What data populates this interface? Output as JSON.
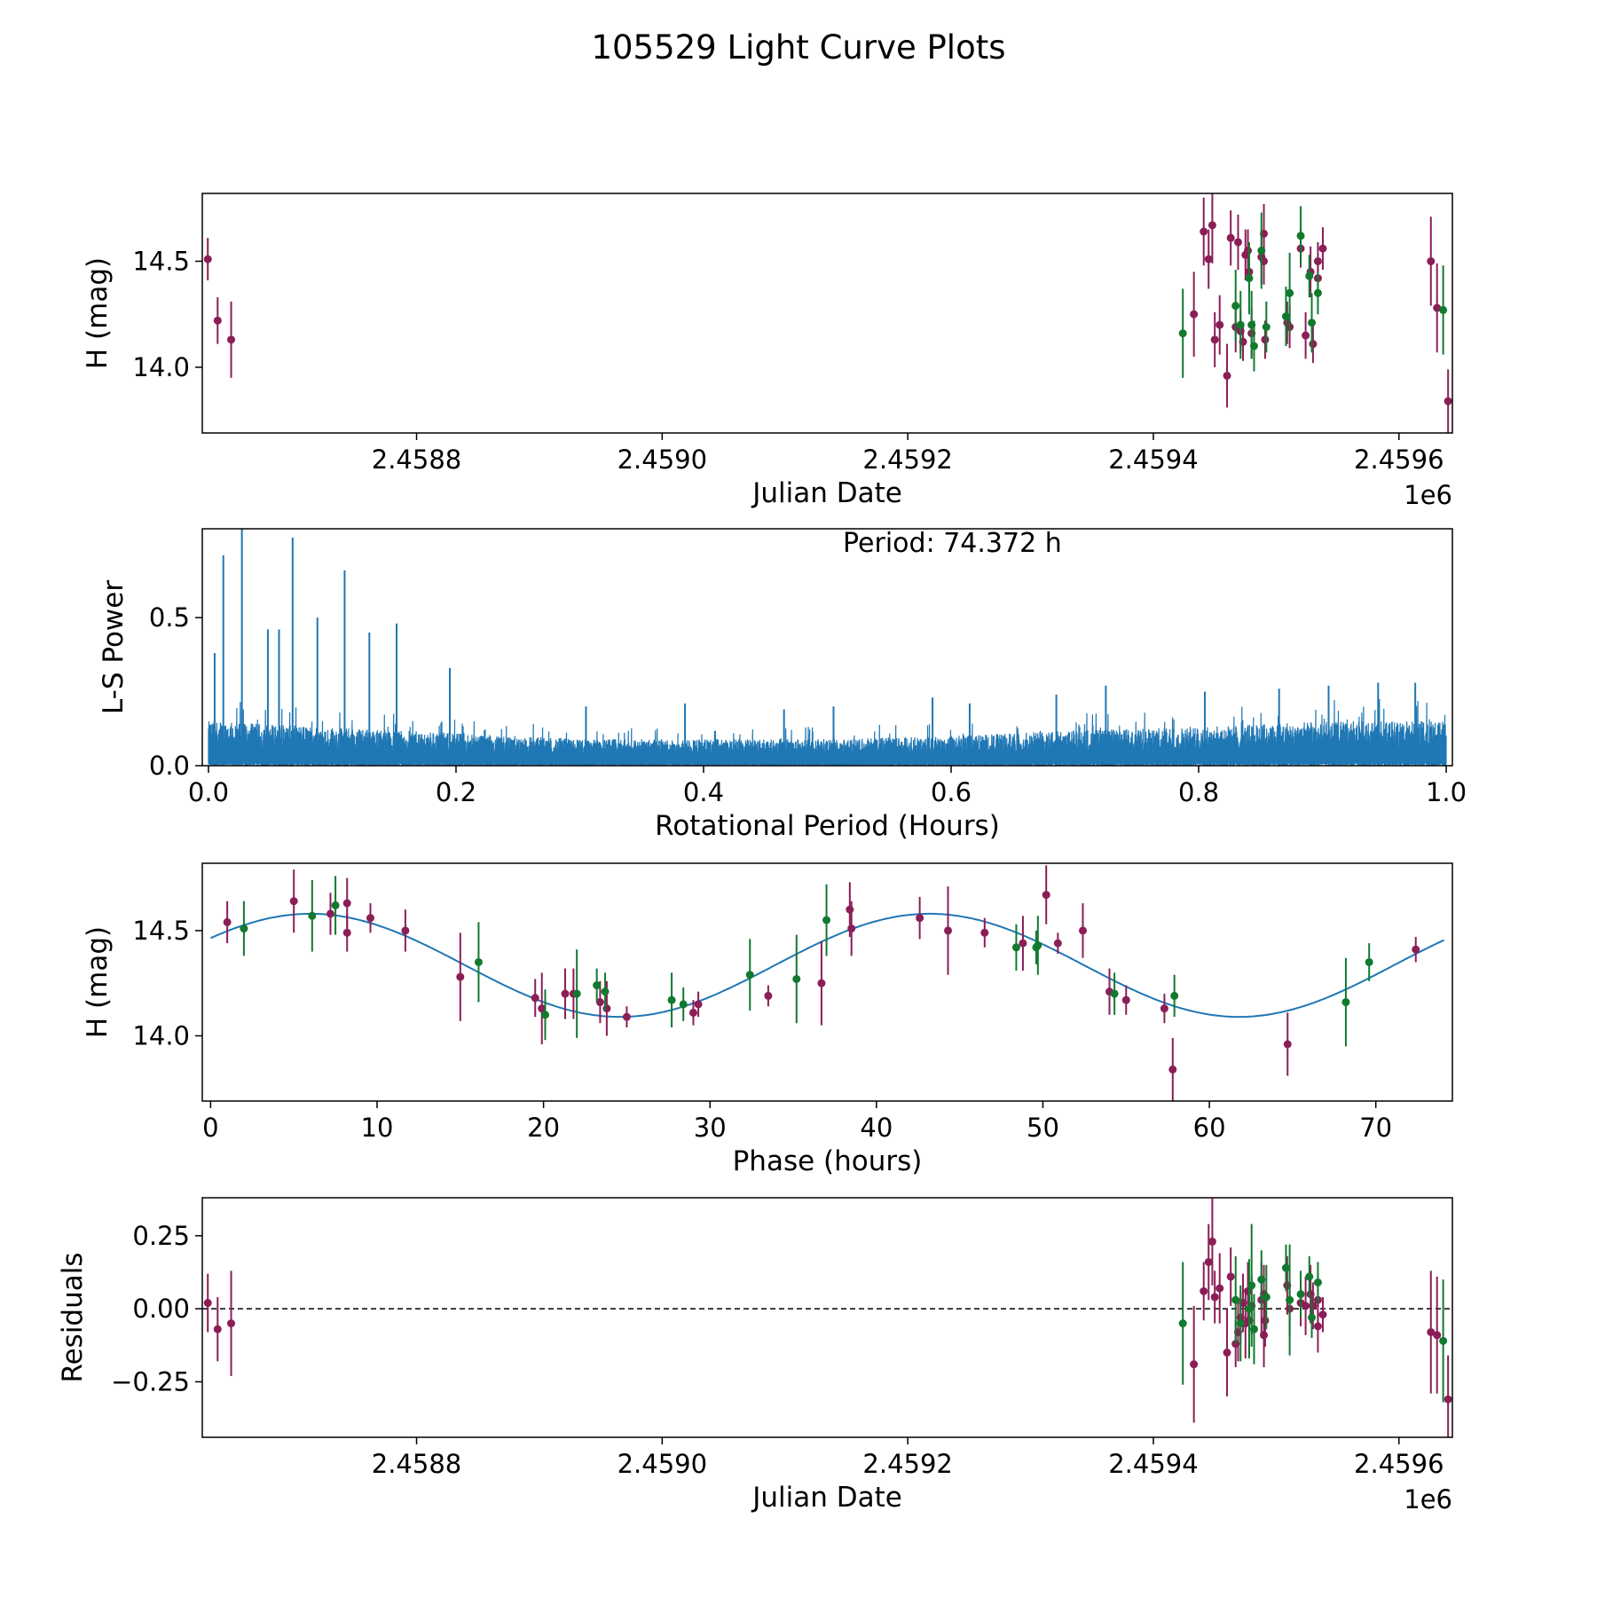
{
  "figure": {
    "title": "105529 Light Curve Plots"
  },
  "colors": {
    "filter_r": "#8B1E57",
    "filter_g": "#117A2E",
    "periodogram": "#1F77B4",
    "fit_line": "#1F77B4",
    "axes": "#000000",
    "zero_line": "#000000"
  },
  "chart_data": [
    {
      "id": "raw-light-curve",
      "type": "scatter",
      "title": "",
      "xlabel": "Julian Date",
      "ylabel": "H (mag)",
      "xlim": [
        2458625.5,
        2459643.5
      ],
      "ylim": [
        13.69,
        14.82
      ],
      "xticks": [
        2458800,
        2459000,
        2459200,
        2459400,
        2459600
      ],
      "xtick_labels": [
        "2.4588",
        "2.4590",
        "2.4592",
        "2.4594",
        "2.4596"
      ],
      "x_offset_label": "1e6",
      "yticks": [
        14.0,
        14.5
      ],
      "ytick_labels": [
        "14.0",
        "14.5"
      ],
      "series": [
        {
          "name": "r",
          "color_key": "filter_r",
          "points": [
            [
              2458630,
              14.51,
              0.1
            ],
            [
              2458638,
              14.22,
              0.11
            ],
            [
              2458649,
              14.13,
              0.18
            ],
            [
              2459433,
              14.25,
              0.2
            ],
            [
              2459441,
              14.64,
              0.16
            ],
            [
              2459445,
              14.51,
              0.14
            ],
            [
              2459448,
              14.67,
              0.18
            ],
            [
              2459450,
              14.13,
              0.13
            ],
            [
              2459454,
              14.2,
              0.14
            ],
            [
              2459460,
              13.96,
              0.15
            ],
            [
              2459463,
              14.61,
              0.13
            ],
            [
              2459467,
              14.19,
              0.12
            ],
            [
              2459469,
              14.59,
              0.13
            ],
            [
              2459471,
              14.17,
              0.1
            ],
            [
              2459473,
              14.12,
              0.09
            ],
            [
              2459475,
              14.53,
              0.12
            ],
            [
              2459477,
              14.55,
              0.1
            ],
            [
              2459478,
              14.45,
              0.1
            ],
            [
              2459480,
              14.16,
              0.12
            ],
            [
              2459488,
              14.52,
              0.13
            ],
            [
              2459490,
              14.63,
              0.14
            ],
            [
              2459490,
              14.5,
              0.11
            ],
            [
              2459491,
              14.13,
              0.09
            ],
            [
              2459509,
              14.21,
              0.1
            ],
            [
              2459511,
              14.19,
              0.1
            ],
            [
              2459520,
              14.56,
              0.09
            ],
            [
              2459524,
              14.15,
              0.11
            ],
            [
              2459528,
              14.45,
              0.12
            ],
            [
              2459530,
              14.11,
              0.09
            ],
            [
              2459534,
              14.5,
              0.09
            ],
            [
              2459534,
              14.42,
              0.09
            ],
            [
              2459538,
              14.56,
              0.1
            ],
            [
              2459626,
              14.5,
              0.21
            ],
            [
              2459631,
              14.28,
              0.21
            ],
            [
              2459640,
              13.84,
              0.15
            ]
          ]
        },
        {
          "name": "g",
          "color_key": "filter_g",
          "points": [
            [
              2459424,
              14.16,
              0.21
            ],
            [
              2459467,
              14.29,
              0.17
            ],
            [
              2459471,
              14.2,
              0.16
            ],
            [
              2459478,
              14.42,
              0.17
            ],
            [
              2459480,
              14.2,
              0.16
            ],
            [
              2459482,
              14.1,
              0.12
            ],
            [
              2459488,
              14.55,
              0.18
            ],
            [
              2459492,
              14.19,
              0.12
            ],
            [
              2459508,
              14.24,
              0.14
            ],
            [
              2459511,
              14.35,
              0.19
            ],
            [
              2459520,
              14.62,
              0.14
            ],
            [
              2459527,
              14.43,
              0.1
            ],
            [
              2459529,
              14.21,
              0.14
            ],
            [
              2459534,
              14.35,
              0.1
            ],
            [
              2459636,
              14.27,
              0.21
            ]
          ]
        }
      ]
    },
    {
      "id": "periodogram",
      "type": "line",
      "title": "",
      "xlabel": "Rotational Period (Hours)",
      "ylabel": "L-S Power",
      "annotation": "Period: 74.372 h",
      "xlim": [
        -0.005,
        1.005
      ],
      "ylim": [
        0,
        0.8
      ],
      "xticks": [
        0.0,
        0.2,
        0.4,
        0.6,
        0.8,
        1.0
      ],
      "xtick_labels": [
        "0.0",
        "0.2",
        "0.4",
        "0.6",
        "0.8",
        "1.0"
      ],
      "yticks": [
        0.0,
        0.5
      ],
      "ytick_labels": [
        "0.0",
        "0.5"
      ],
      "peaks": [
        [
          0.005,
          0.38
        ],
        [
          0.012,
          0.71
        ],
        [
          0.027,
          0.8
        ],
        [
          0.048,
          0.46
        ],
        [
          0.057,
          0.46
        ],
        [
          0.068,
          0.77
        ],
        [
          0.088,
          0.5
        ],
        [
          0.11,
          0.66
        ],
        [
          0.13,
          0.45
        ],
        [
          0.152,
          0.48
        ],
        [
          0.195,
          0.33
        ],
        [
          0.305,
          0.2
        ],
        [
          0.385,
          0.21
        ],
        [
          0.465,
          0.19
        ],
        [
          0.505,
          0.2
        ],
        [
          0.585,
          0.23
        ],
        [
          0.615,
          0.21
        ],
        [
          0.685,
          0.24
        ],
        [
          0.725,
          0.27
        ],
        [
          0.805,
          0.25
        ],
        [
          0.865,
          0.26
        ],
        [
          0.905,
          0.27
        ],
        [
          0.945,
          0.28
        ],
        [
          0.975,
          0.28
        ]
      ],
      "noise_envelope": [
        [
          0.0,
          0.15
        ],
        [
          0.1,
          0.13
        ],
        [
          0.2,
          0.11
        ],
        [
          0.3,
          0.09
        ],
        [
          0.4,
          0.09
        ],
        [
          0.5,
          0.09
        ],
        [
          0.6,
          0.1
        ],
        [
          0.7,
          0.12
        ],
        [
          0.8,
          0.13
        ],
        [
          0.9,
          0.15
        ],
        [
          1.0,
          0.15
        ]
      ]
    },
    {
      "id": "phased-light-curve",
      "type": "scatter",
      "title": "",
      "xlabel": "Phase (hours)",
      "ylabel": "H (mag)",
      "xlim": [
        -0.5,
        74.6
      ],
      "ylim": [
        13.69,
        14.82
      ],
      "xticks": [
        0,
        10,
        20,
        30,
        40,
        50,
        60,
        70
      ],
      "xtick_labels": [
        "0",
        "10",
        "20",
        "30",
        "40",
        "50",
        "60",
        "70"
      ],
      "yticks": [
        14.0,
        14.5
      ],
      "ytick_labels": [
        "14.0",
        "14.5"
      ],
      "fit": {
        "mean": 14.335,
        "amplitude": 0.245,
        "period_hours": 37.186,
        "peak_phase_hours": 6.0
      },
      "series": [
        {
          "name": "r",
          "color_key": "filter_r",
          "points": [
            [
              1.0,
              14.54,
              0.1
            ],
            [
              5.0,
              14.64,
              0.15
            ],
            [
              7.2,
              14.58,
              0.1
            ],
            [
              8.2,
              14.63,
              0.12
            ],
            [
              8.2,
              14.49,
              0.09
            ],
            [
              9.6,
              14.56,
              0.07
            ],
            [
              11.7,
              14.5,
              0.1
            ],
            [
              15.0,
              14.28,
              0.21
            ],
            [
              19.5,
              14.18,
              0.09
            ],
            [
              19.9,
              14.13,
              0.17
            ],
            [
              21.3,
              14.2,
              0.12
            ],
            [
              21.8,
              14.2,
              0.12
            ],
            [
              23.4,
              14.16,
              0.1
            ],
            [
              23.8,
              14.13,
              0.13
            ],
            [
              25.0,
              14.09,
              0.05
            ],
            [
              29.0,
              14.11,
              0.06
            ],
            [
              29.3,
              14.15,
              0.06
            ],
            [
              33.5,
              14.19,
              0.05
            ],
            [
              36.7,
              14.25,
              0.2
            ],
            [
              38.4,
              14.6,
              0.13
            ],
            [
              38.5,
              14.51,
              0.13
            ],
            [
              42.6,
              14.56,
              0.1
            ],
            [
              44.3,
              14.5,
              0.21
            ],
            [
              46.5,
              14.49,
              0.07
            ],
            [
              48.8,
              14.44,
              0.13
            ],
            [
              50.2,
              14.67,
              0.14
            ],
            [
              50.9,
              14.44,
              0.05
            ],
            [
              52.4,
              14.5,
              0.13
            ],
            [
              54.0,
              14.21,
              0.11
            ],
            [
              55.0,
              14.17,
              0.07
            ],
            [
              57.3,
              14.13,
              0.07
            ],
            [
              57.8,
              13.84,
              0.15
            ],
            [
              64.7,
              13.96,
              0.15
            ],
            [
              72.4,
              14.41,
              0.06
            ]
          ]
        },
        {
          "name": "g",
          "color_key": "filter_g",
          "points": [
            [
              2.0,
              14.51,
              0.13
            ],
            [
              6.1,
              14.57,
              0.17
            ],
            [
              7.5,
              14.62,
              0.14
            ],
            [
              16.1,
              14.35,
              0.19
            ],
            [
              20.1,
              14.1,
              0.12
            ],
            [
              22.0,
              14.2,
              0.21
            ],
            [
              23.2,
              14.24,
              0.08
            ],
            [
              23.7,
              14.21,
              0.09
            ],
            [
              27.7,
              14.17,
              0.13
            ],
            [
              28.4,
              14.15,
              0.08
            ],
            [
              32.4,
              14.29,
              0.17
            ],
            [
              35.2,
              14.27,
              0.21
            ],
            [
              37.0,
              14.55,
              0.17
            ],
            [
              48.4,
              14.42,
              0.11
            ],
            [
              49.6,
              14.42,
              0.08
            ],
            [
              49.7,
              14.43,
              0.14
            ],
            [
              54.3,
              14.2,
              0.1
            ],
            [
              57.9,
              14.19,
              0.1
            ],
            [
              68.2,
              14.16,
              0.21
            ],
            [
              69.6,
              14.35,
              0.09
            ]
          ]
        }
      ]
    },
    {
      "id": "residuals",
      "type": "scatter",
      "title": "",
      "xlabel": "Julian Date",
      "ylabel": "Residuals",
      "xlim": [
        2458625.5,
        2459643.5
      ],
      "ylim": [
        -0.44,
        0.38
      ],
      "xticks": [
        2458800,
        2459000,
        2459200,
        2459400,
        2459600
      ],
      "xtick_labels": [
        "2.4588",
        "2.4590",
        "2.4592",
        "2.4594",
        "2.4596"
      ],
      "x_offset_label": "1e6",
      "yticks": [
        -0.25,
        0.0,
        0.25
      ],
      "ytick_labels": [
        "−0.25",
        "0.00",
        "0.25"
      ],
      "zero_line": true,
      "series": [
        {
          "name": "r",
          "color_key": "filter_r",
          "points": [
            [
              2458630,
              0.02,
              0.1
            ],
            [
              2458638,
              -0.07,
              0.11
            ],
            [
              2458649,
              -0.05,
              0.18
            ],
            [
              2459433,
              -0.19,
              0.2
            ],
            [
              2459441,
              0.06,
              0.1
            ],
            [
              2459445,
              0.16,
              0.13
            ],
            [
              2459448,
              0.23,
              0.15
            ],
            [
              2459450,
              0.04,
              0.09
            ],
            [
              2459454,
              0.07,
              0.12
            ],
            [
              2459460,
              -0.15,
              0.15
            ],
            [
              2459463,
              0.11,
              0.1
            ],
            [
              2459467,
              -0.12,
              0.08
            ],
            [
              2459469,
              -0.08,
              0.1
            ],
            [
              2459471,
              -0.03,
              0.09
            ],
            [
              2459473,
              0.02,
              0.1
            ],
            [
              2459475,
              -0.05,
              0.12
            ],
            [
              2459477,
              0.06,
              0.1
            ],
            [
              2459478,
              -0.04,
              0.12
            ],
            [
              2459480,
              0.01,
              0.1
            ],
            [
              2459488,
              0.03,
              0.13
            ],
            [
              2459490,
              -0.09,
              0.11
            ],
            [
              2459490,
              0.05,
              0.1
            ],
            [
              2459491,
              -0.04,
              0.09
            ],
            [
              2459509,
              0.08,
              0.1
            ],
            [
              2459511,
              0.0,
              0.09
            ],
            [
              2459520,
              0.02,
              0.08
            ],
            [
              2459524,
              0.01,
              0.1
            ],
            [
              2459528,
              0.05,
              0.1
            ],
            [
              2459530,
              0.01,
              0.08
            ],
            [
              2459534,
              -0.06,
              0.09
            ],
            [
              2459534,
              0.03,
              0.09
            ],
            [
              2459538,
              -0.02,
              0.06
            ],
            [
              2459626,
              -0.08,
              0.21
            ],
            [
              2459631,
              -0.09,
              0.2
            ],
            [
              2459640,
              -0.31,
              0.15
            ]
          ]
        },
        {
          "name": "g",
          "color_key": "filter_g",
          "points": [
            [
              2459424,
              -0.05,
              0.21
            ],
            [
              2459467,
              0.03,
              0.15
            ],
            [
              2459471,
              -0.05,
              0.13
            ],
            [
              2459478,
              0.0,
              0.17
            ],
            [
              2459480,
              0.08,
              0.21
            ],
            [
              2459482,
              -0.07,
              0.12
            ],
            [
              2459488,
              0.1,
              0.1
            ],
            [
              2459492,
              0.04,
              0.11
            ],
            [
              2459508,
              0.14,
              0.08
            ],
            [
              2459511,
              0.03,
              0.19
            ],
            [
              2459520,
              0.05,
              0.08
            ],
            [
              2459527,
              0.11,
              0.07
            ],
            [
              2459529,
              -0.03,
              0.07
            ],
            [
              2459534,
              0.09,
              0.07
            ],
            [
              2459636,
              -0.11,
              0.21
            ]
          ]
        }
      ]
    }
  ]
}
